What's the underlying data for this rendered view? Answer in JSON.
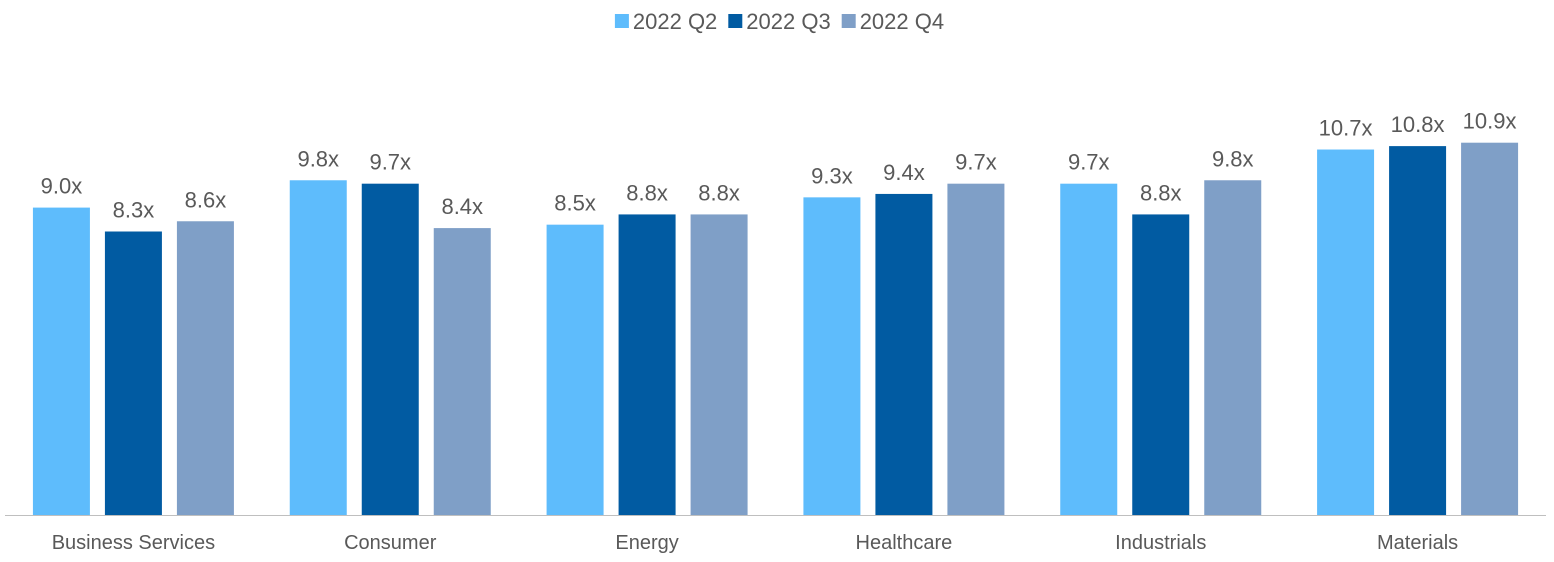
{
  "chart_data": {
    "type": "bar",
    "title": "",
    "xlabel": "",
    "ylabel": "",
    "categories": [
      "Business Services",
      "Consumer",
      "Energy",
      "Healthcare",
      "Industrials",
      "Materials"
    ],
    "series": [
      {
        "name": "2022 Q2",
        "color": "#5ebcfc",
        "values": [
          9.0,
          9.8,
          8.5,
          9.3,
          9.7,
          10.7
        ],
        "labels": [
          "9.0x",
          "9.8x",
          "8.5x",
          "9.3x",
          "9.7x",
          "10.7x"
        ]
      },
      {
        "name": "2022 Q3",
        "color": "#015ba2",
        "values": [
          8.3,
          9.7,
          8.8,
          9.4,
          8.8,
          10.8
        ],
        "labels": [
          "8.3x",
          "9.7x",
          "8.8x",
          "9.4x",
          "8.8x",
          "10.8x"
        ]
      },
      {
        "name": "2022 Q4",
        "color": "#7f9fc7",
        "values": [
          8.6,
          8.4,
          8.8,
          9.7,
          9.8,
          10.9
        ],
        "labels": [
          "8.6x",
          "8.4x",
          "8.8x",
          "9.7x",
          "9.8x",
          "10.9x"
        ]
      }
    ],
    "ylim": [
      0,
      12.15
    ],
    "grid": false,
    "legend_position": "top-center",
    "axis_color": "#bfbfbf",
    "label_color": "#595959"
  }
}
